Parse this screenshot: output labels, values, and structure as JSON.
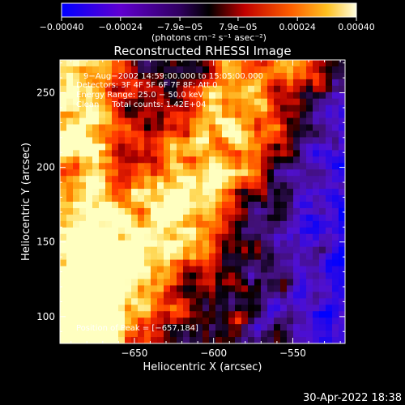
{
  "chart_data": {
    "type": "heatmap",
    "title": "Reconstructed RHESSI Image",
    "xlabel": "Heliocentric X (arcsec)",
    "ylabel": "Heliocentric Y (arcsec)",
    "xlim": [
      -697,
      -517
    ],
    "ylim": [
      82,
      272
    ],
    "x_ticks": [
      -650,
      -600,
      -550
    ],
    "x_tick_labels": [
      "−650",
      "−600",
      "−550"
    ],
    "y_ticks": [
      100,
      150,
      200,
      250
    ],
    "y_tick_labels": [
      "100",
      "150",
      "200",
      "250"
    ],
    "colorbar": {
      "min": -0.0004,
      "max": 0.0004,
      "ticks": [
        -0.0004,
        -0.00024,
        -7.9e-05,
        7.9e-05,
        0.00024,
        0.0004
      ],
      "tick_labels": [
        "−0.00040",
        "−0.00024",
        "−7.9e−05",
        "7.9e−05",
        "0.00024",
        "0.00040"
      ],
      "unit_label": "(photons cm⁻² s⁻¹ asec⁻²)",
      "colors": [
        "#0000ff",
        "#8000c0",
        "#000000",
        "#ff0000",
        "#ffa000",
        "#ffffa0"
      ]
    },
    "annotations": [
      "9−Aug−2002 14:59:00.000 to 15:05:00.000",
      "Detectors: 3F 4F 5F 6F 7F 8F; Att 0",
      "Energy Range: 25.0 − 50.0 keV",
      "Clean     Total counts: 1.42E+04"
    ],
    "peak_label": "Position of Peak = [−657,184]",
    "peak": [
      -657,
      184
    ],
    "grid": false
  },
  "footer": {
    "timestamp": "30-Apr-2022 18:38"
  }
}
